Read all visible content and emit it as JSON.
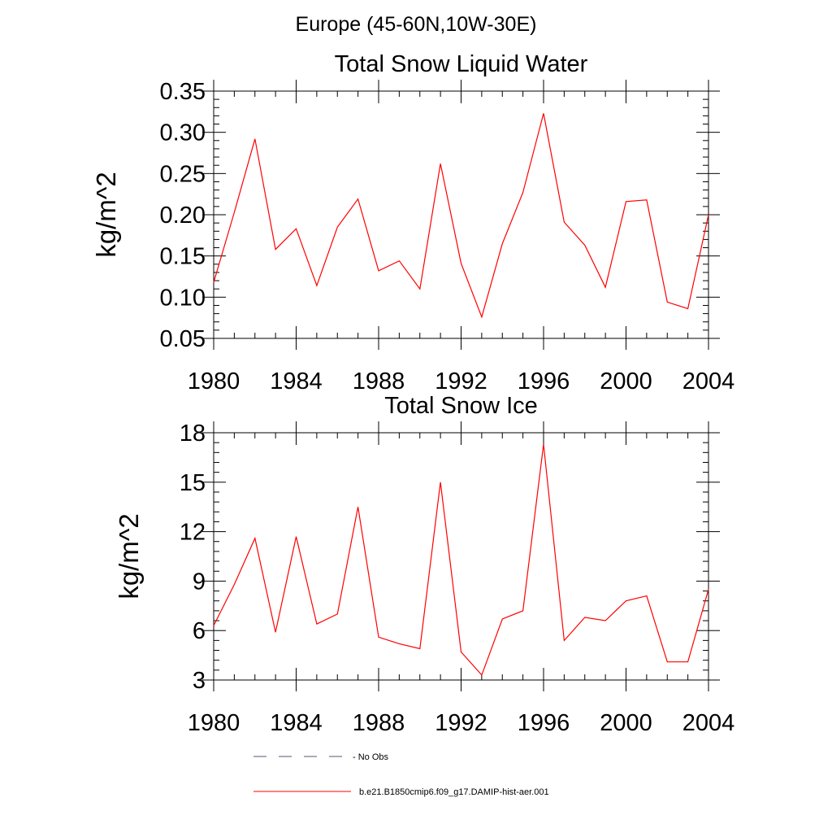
{
  "figure": {
    "title": "Europe (45-60N,10W-30E)"
  },
  "chart_data": [
    {
      "type": "line",
      "title": "Total Snow Liquid Water",
      "xlabel": "",
      "ylabel": "kg/m^2",
      "xlim": [
        1980,
        2004
      ],
      "ylim": [
        0.05,
        0.35
      ],
      "xticks": [
        "1980",
        "1984",
        "1988",
        "1992",
        "1996",
        "2000",
        "2004"
      ],
      "yticks": [
        "0.05",
        "0.10",
        "0.15",
        "0.20",
        "0.25",
        "0.30",
        "0.35"
      ],
      "grid": false,
      "x": [
        1980,
        1981,
        1982,
        1983,
        1984,
        1985,
        1986,
        1987,
        1988,
        1989,
        1990,
        1991,
        1992,
        1993,
        1994,
        1995,
        1996,
        1997,
        1998,
        1999,
        2000,
        2001,
        2002,
        2003,
        2004
      ],
      "series": [
        {
          "name": "b.e21.B1850cmip6.f09_g17.DAMIP-hist-aer.001",
          "color": "#ff0000",
          "values": [
            0.118,
            0.203,
            0.292,
            0.158,
            0.183,
            0.114,
            0.185,
            0.219,
            0.132,
            0.144,
            0.11,
            0.262,
            0.141,
            0.076,
            0.165,
            0.227,
            0.323,
            0.191,
            0.163,
            0.112,
            0.216,
            0.218,
            0.094,
            0.086,
            0.2
          ]
        }
      ]
    },
    {
      "type": "line",
      "title": "Total Snow Ice",
      "xlabel": "",
      "ylabel": "kg/m^2",
      "xlim": [
        1980,
        2004
      ],
      "ylim": [
        3,
        18
      ],
      "xticks": [
        "1980",
        "1984",
        "1988",
        "1992",
        "1996",
        "2000",
        "2004"
      ],
      "yticks": [
        "3",
        "6",
        "9",
        "12",
        "15",
        "18"
      ],
      "grid": false,
      "x": [
        1980,
        1981,
        1982,
        1983,
        1984,
        1985,
        1986,
        1987,
        1988,
        1989,
        1990,
        1991,
        1992,
        1993,
        1994,
        1995,
        1996,
        1997,
        1998,
        1999,
        2000,
        2001,
        2002,
        2003,
        2004
      ],
      "series": [
        {
          "name": "b.e21.B1850cmip6.f09_g17.DAMIP-hist-aer.001",
          "color": "#ff0000",
          "values": [
            6.3,
            8.8,
            11.6,
            5.9,
            11.7,
            6.4,
            7.0,
            13.5,
            5.6,
            5.2,
            4.9,
            15.0,
            4.7,
            3.3,
            6.7,
            7.2,
            17.3,
            5.4,
            6.8,
            6.6,
            7.8,
            8.1,
            4.1,
            4.1,
            8.5
          ]
        }
      ]
    }
  ],
  "legend": {
    "placement": "bottom",
    "items": [
      {
        "label": "- No Obs",
        "style": "dashed",
        "color": "#555577"
      },
      {
        "label": "b.e21.B1850cmip6.f09_g17.DAMIP-hist-aer.001",
        "style": "solid",
        "color": "#ff0000"
      }
    ]
  }
}
